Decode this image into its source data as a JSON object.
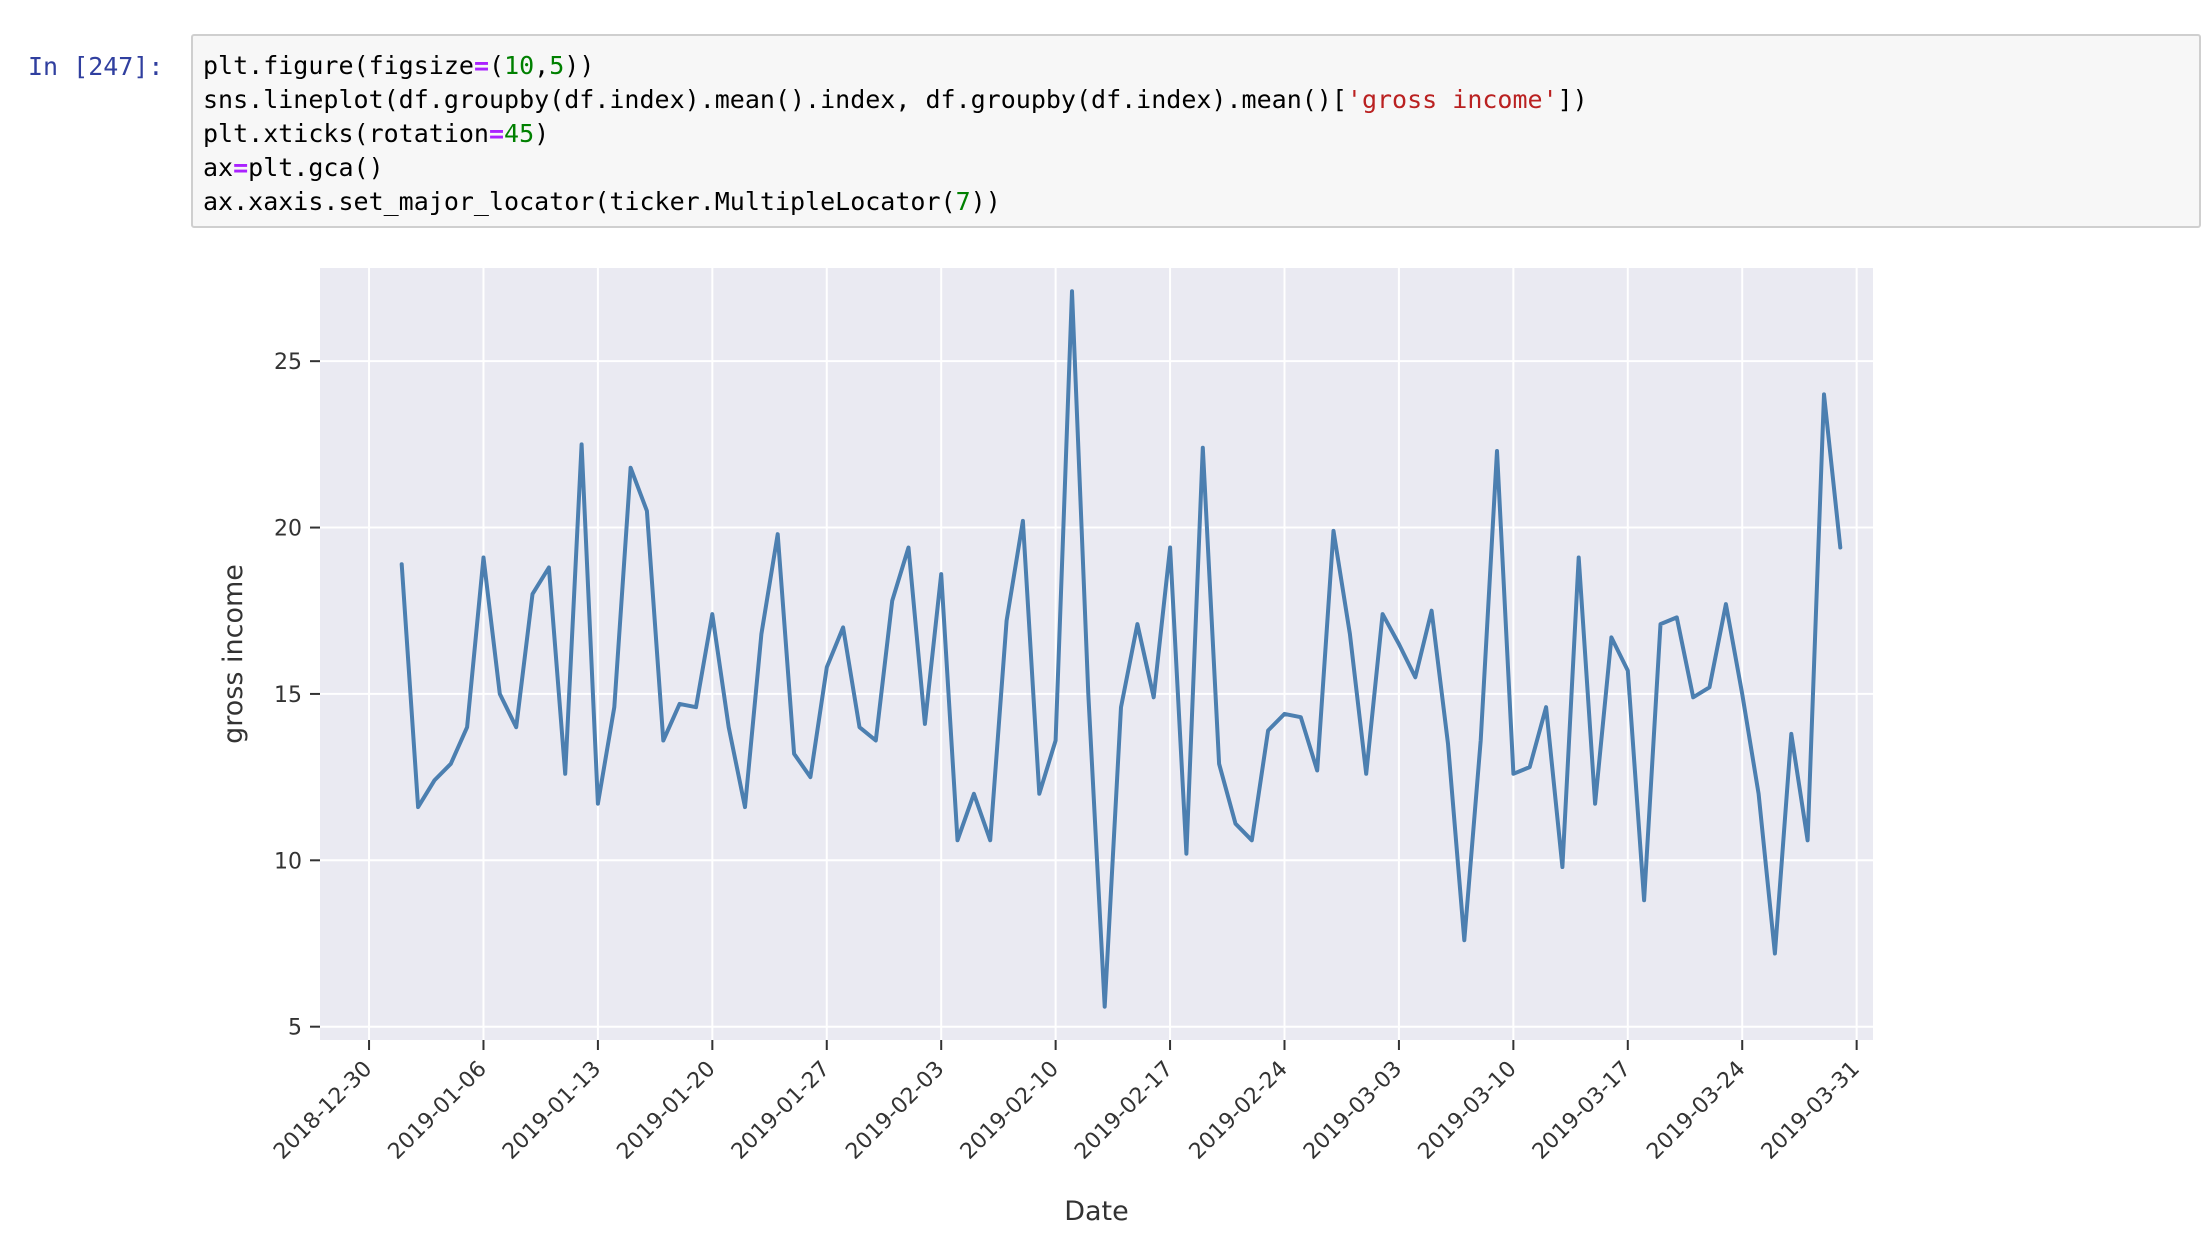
{
  "cell": {
    "prompt": "In [247]:",
    "code_lines": [
      [
        {
          "t": "plt.figure(figsize"
        },
        {
          "t": "=",
          "c": "o"
        },
        {
          "t": "("
        },
        {
          "t": "10",
          "c": "n"
        },
        {
          "t": ","
        },
        {
          "t": "5",
          "c": "n"
        },
        {
          "t": "))"
        }
      ],
      [
        {
          "t": "sns.lineplot(df.groupby(df.index).mean().index, df.groupby(df.index).mean()["
        },
        {
          "t": "'gross income'",
          "c": "s"
        },
        {
          "t": "])"
        }
      ],
      [
        {
          "t": "plt.xticks(rotation"
        },
        {
          "t": "=",
          "c": "o"
        },
        {
          "t": "45",
          "c": "n"
        },
        {
          "t": ")"
        }
      ],
      [
        {
          "t": "ax"
        },
        {
          "t": "=",
          "c": "o"
        },
        {
          "t": "plt.gca()"
        }
      ],
      [
        {
          "t": "ax.xaxis.set_major_locator(ticker.MultipleLocator("
        },
        {
          "t": "7",
          "c": "n"
        },
        {
          "t": "))"
        }
      ]
    ]
  },
  "chart_data": {
    "type": "line",
    "xlabel": "Date",
    "ylabel": "gross income",
    "ylim": [
      4.6,
      27.8
    ],
    "yticks": [
      5,
      10,
      15,
      20,
      25
    ],
    "xlim": [
      "2018-12-27",
      "2019-04-01"
    ],
    "xticks": [
      "2018-12-30",
      "2019-01-06",
      "2019-01-13",
      "2019-01-20",
      "2019-01-27",
      "2019-02-03",
      "2019-02-10",
      "2019-02-17",
      "2019-02-24",
      "2019-03-03",
      "2019-03-10",
      "2019-03-17",
      "2019-03-24",
      "2019-03-31"
    ],
    "grid": true,
    "colors": {
      "line": "#4c7fb0",
      "plot_bg": "#eaeaf2",
      "grid": "#ffffff"
    },
    "series": [
      {
        "x": [
          "2019-01-01",
          "2019-01-02",
          "2019-01-03",
          "2019-01-04",
          "2019-01-05",
          "2019-01-06",
          "2019-01-07",
          "2019-01-08",
          "2019-01-09",
          "2019-01-10",
          "2019-01-11",
          "2019-01-12",
          "2019-01-13",
          "2019-01-14",
          "2019-01-15",
          "2019-01-16",
          "2019-01-17",
          "2019-01-18",
          "2019-01-19",
          "2019-01-20",
          "2019-01-21",
          "2019-01-22",
          "2019-01-23",
          "2019-01-24",
          "2019-01-25",
          "2019-01-26",
          "2019-01-27",
          "2019-01-28",
          "2019-01-29",
          "2019-01-30",
          "2019-01-31",
          "2019-02-01",
          "2019-02-02",
          "2019-02-03",
          "2019-02-04",
          "2019-02-05",
          "2019-02-06",
          "2019-02-07",
          "2019-02-08",
          "2019-02-09",
          "2019-02-10",
          "2019-02-11",
          "2019-02-12",
          "2019-02-13",
          "2019-02-14",
          "2019-02-15",
          "2019-02-16",
          "2019-02-17",
          "2019-02-18",
          "2019-02-19",
          "2019-02-20",
          "2019-02-21",
          "2019-02-22",
          "2019-02-23",
          "2019-02-24",
          "2019-02-25",
          "2019-02-26",
          "2019-02-27",
          "2019-02-28",
          "2019-03-01",
          "2019-03-02",
          "2019-03-03",
          "2019-03-04",
          "2019-03-05",
          "2019-03-06",
          "2019-03-07",
          "2019-03-08",
          "2019-03-09",
          "2019-03-10",
          "2019-03-11",
          "2019-03-12",
          "2019-03-13",
          "2019-03-14",
          "2019-03-15",
          "2019-03-16",
          "2019-03-17",
          "2019-03-18",
          "2019-03-19",
          "2019-03-20",
          "2019-03-21",
          "2019-03-22",
          "2019-03-23",
          "2019-03-24",
          "2019-03-25",
          "2019-03-26",
          "2019-03-27",
          "2019-03-28",
          "2019-03-29",
          "2019-03-30"
        ],
        "y": [
          18.9,
          11.6,
          12.4,
          12.9,
          14.0,
          19.1,
          15.0,
          14.0,
          18.0,
          18.8,
          12.6,
          22.5,
          11.7,
          14.6,
          21.8,
          20.5,
          13.6,
          14.7,
          14.6,
          17.4,
          14.0,
          11.6,
          16.8,
          19.8,
          13.2,
          12.5,
          15.8,
          17.0,
          14.0,
          13.6,
          17.8,
          19.4,
          14.1,
          18.6,
          10.6,
          12.0,
          10.6,
          17.2,
          20.2,
          12.0,
          13.6,
          27.1,
          15.0,
          5.6,
          14.6,
          17.1,
          14.9,
          19.4,
          10.2,
          22.4,
          12.9,
          11.1,
          10.6,
          13.9,
          14.4,
          14.3,
          12.7,
          19.9,
          16.8,
          12.6,
          17.4,
          16.5,
          15.5,
          17.5,
          13.5,
          7.6,
          13.6,
          22.3,
          12.6,
          12.8,
          14.6,
          9.8,
          19.1,
          11.7,
          16.7,
          15.7,
          8.8,
          17.1,
          17.3,
          14.9,
          15.2,
          17.7,
          15.0,
          12.0,
          7.2,
          13.8,
          10.6,
          24.0,
          19.4
        ]
      }
    ]
  }
}
